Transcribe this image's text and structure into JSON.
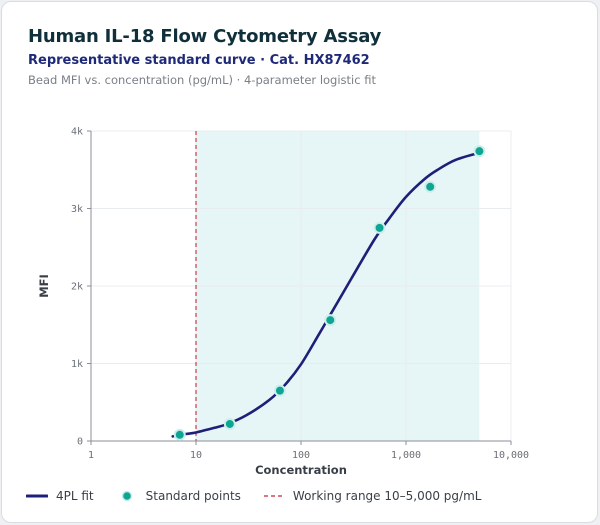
{
  "header": {
    "title": "Human IL-18 Flow Cytometry Assay",
    "subtitle": "Representative standard curve · Cat. HX87462",
    "description": "Bead MFI vs. concentration (pg/mL) · 4-parameter logistic fit"
  },
  "colors": {
    "fit_line": "#1e1f78",
    "points": "#0fa595",
    "working_range_fill": "#e6f6f6",
    "working_range_line": "#d0485a"
  },
  "legend": {
    "fit": "4PL fit",
    "points": "Standard points",
    "range": "Working range 10–5,000 pg/mL"
  },
  "chart_data": {
    "type": "scatter",
    "title": "Human IL-18 Flow Cytometry Assay",
    "xlabel": "Concentration",
    "ylabel": "MFI",
    "xscale": "log",
    "xlim": [
      1,
      10000
    ],
    "ylim": [
      0,
      4000
    ],
    "x_ticks": [
      1,
      10,
      100,
      1000,
      10000
    ],
    "x_tick_labels": [
      "1",
      "10",
      "100",
      "1,000",
      "10,000"
    ],
    "y_ticks": [
      0,
      1000,
      2000,
      3000,
      4000
    ],
    "y_tick_labels": [
      "0",
      "1k",
      "2k",
      "3k",
      "4k"
    ],
    "grid": true,
    "legend_position": "bottom",
    "series": [
      {
        "name": "Standard points",
        "type": "scatter",
        "x": [
          7,
          21,
          63,
          190,
          560,
          1700,
          5000
        ],
        "y": [
          80,
          220,
          650,
          1560,
          2750,
          3280,
          3740
        ]
      },
      {
        "name": "4PL fit",
        "type": "line",
        "x": [
          6,
          8,
          10,
          15,
          20,
          30,
          50,
          70,
          100,
          150,
          200,
          300,
          500,
          700,
          1000,
          1500,
          2000,
          3000,
          5000
        ],
        "y": [
          60,
          90,
          110,
          170,
          220,
          330,
          530,
          720,
          990,
          1390,
          1680,
          2090,
          2600,
          2880,
          3150,
          3380,
          3500,
          3630,
          3720
        ]
      }
    ],
    "working_range": {
      "x": [
        10,
        5000
      ],
      "label": "Working range 10–5,000 pg/mL"
    }
  }
}
